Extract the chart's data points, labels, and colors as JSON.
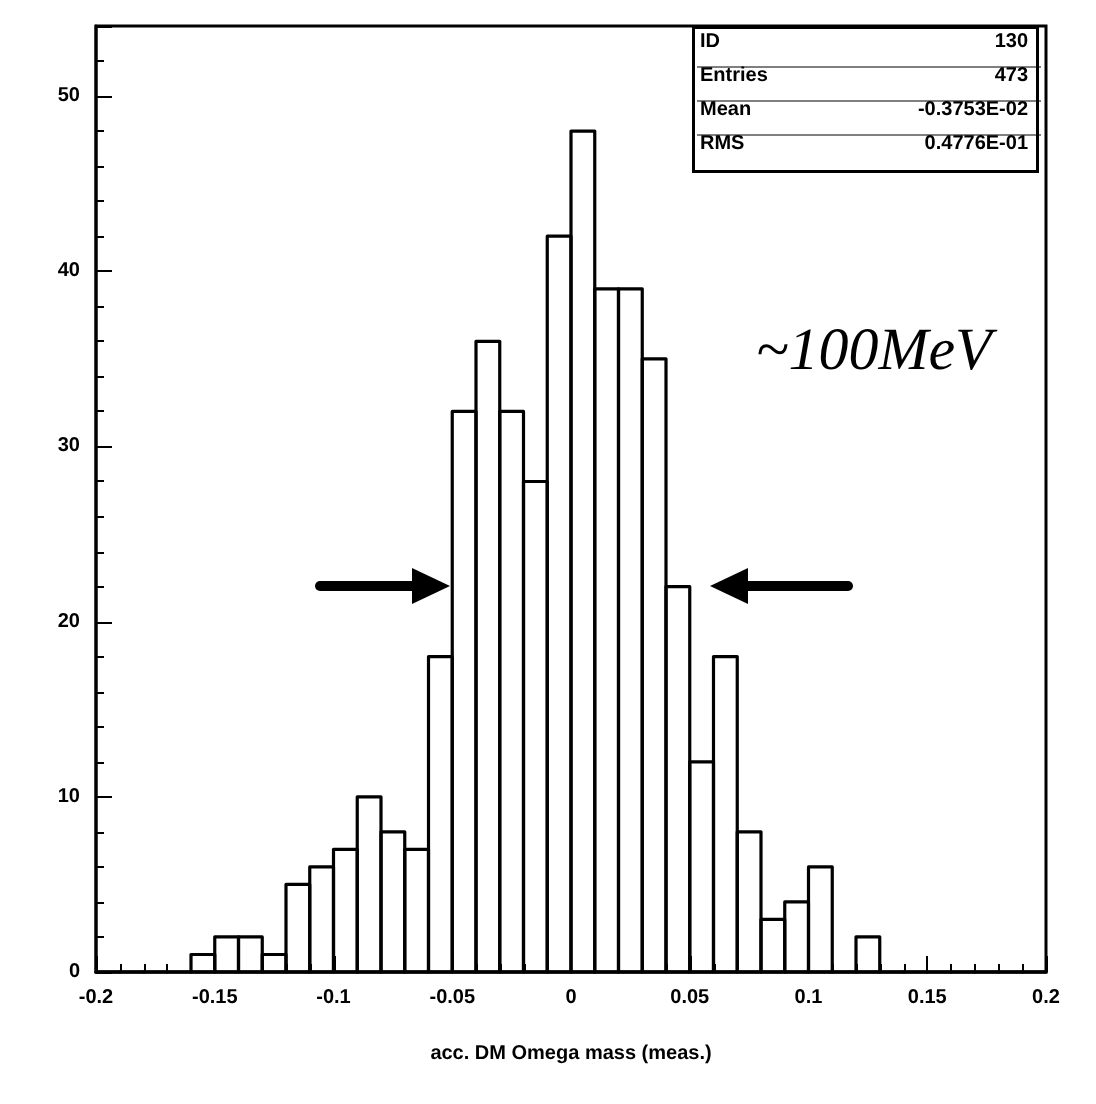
{
  "chart_data": {
    "type": "histogram",
    "xlabel": "acc. DM Omega mass (meas.)",
    "bins": [
      -0.2,
      -0.19,
      -0.18,
      -0.17,
      -0.16,
      -0.15,
      -0.14,
      -0.13,
      -0.12,
      -0.11,
      -0.1,
      -0.09,
      -0.08,
      -0.07,
      -0.06,
      -0.05,
      -0.04,
      -0.03,
      -0.02,
      -0.01,
      0,
      0.01,
      0.02,
      0.03,
      0.04,
      0.05,
      0.06,
      0.07,
      0.08,
      0.09,
      0.1,
      0.11,
      0.12,
      0.13,
      0.14,
      0.15,
      0.16,
      0.17,
      0.18,
      0.19,
      0.2
    ],
    "values": [
      0,
      0,
      0,
      0,
      1,
      2,
      2,
      1,
      5,
      6,
      7,
      10,
      8,
      7,
      18,
      32,
      36,
      32,
      28,
      42,
      48,
      39,
      39,
      35,
      22,
      12,
      18,
      8,
      3,
      4,
      6,
      0,
      2,
      0,
      0,
      0,
      0,
      0,
      0,
      0
    ],
    "color": "#000000",
    "xlim": [
      -0.2,
      0.2
    ],
    "xticks": [
      -0.2,
      -0.15,
      -0.1,
      -0.05,
      0,
      0.05,
      0.1,
      0.15,
      0.2
    ],
    "ylim": [
      0,
      54
    ],
    "yticks": [
      0,
      10,
      20,
      30,
      40,
      50
    ],
    "grid": false,
    "annotations": [
      "ID",
      "130",
      "Entries",
      "473",
      "Mean",
      "-0.3753E-02",
      "RMS",
      "0.4776E-01",
      "~100MeV"
    ]
  }
}
